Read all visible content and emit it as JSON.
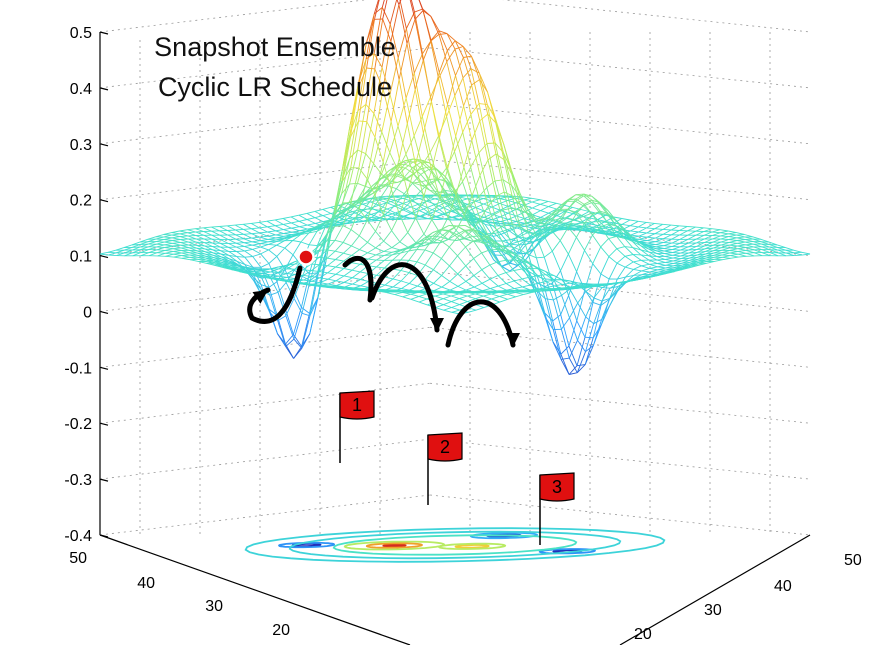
{
  "chart_data": {
    "type": "surface",
    "title_lines": [
      "Snapshot Ensemble",
      "Cyclic LR Schedule"
    ],
    "z_ticks": [
      "0.5",
      "0.4",
      "0.3",
      "0.2",
      "0.1",
      "0",
      "-0.1",
      "-0.2",
      "-0.3",
      "-0.4"
    ],
    "zlim": [
      -0.4,
      0.5
    ],
    "x_ticks_left": [
      "50",
      "40",
      "30",
      "20"
    ],
    "x_ticks_right": [
      "50",
      "40",
      "30",
      "20"
    ],
    "grid": true,
    "flags": [
      {
        "label": "1"
      },
      {
        "label": "2"
      },
      {
        "label": "3"
      }
    ],
    "colors": {
      "flag": "#e01010",
      "start_point": "#e01010",
      "arrows": "#000000",
      "colormap": [
        "#2020b0",
        "#30a0ff",
        "#40e0d0",
        "#a0f070",
        "#f0e040",
        "#f08020",
        "#d02020"
      ]
    }
  }
}
